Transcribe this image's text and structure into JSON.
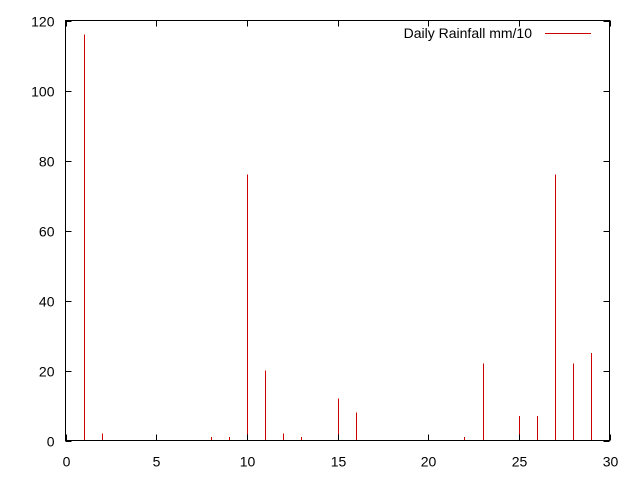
{
  "chart_data": {
    "type": "bar",
    "title": "",
    "xlabel": "",
    "ylabel": "",
    "xlim": [
      0,
      30
    ],
    "ylim": [
      0,
      120
    ],
    "x_ticks": [
      0,
      5,
      10,
      15,
      20,
      25,
      30
    ],
    "y_ticks": [
      0,
      20,
      40,
      60,
      80,
      100,
      120
    ],
    "x_tick_labels": [
      "0",
      "5",
      "10",
      "15",
      "20",
      "25",
      "30"
    ],
    "y_tick_labels": [
      "0",
      "20",
      "40",
      "60",
      "80",
      "100",
      "120"
    ],
    "grid": false,
    "legend_position": "top-right",
    "series": [
      {
        "name": "Daily Rainfall mm/10",
        "color": "#cc0000",
        "x": [
          1,
          2,
          8,
          9,
          10,
          11,
          12,
          13,
          15,
          16,
          22,
          23,
          25,
          26,
          27,
          28,
          29
        ],
        "values": [
          116,
          2,
          1,
          1,
          76,
          20,
          2,
          1,
          12,
          8,
          1,
          22,
          7,
          7,
          76,
          22,
          25
        ]
      }
    ]
  }
}
